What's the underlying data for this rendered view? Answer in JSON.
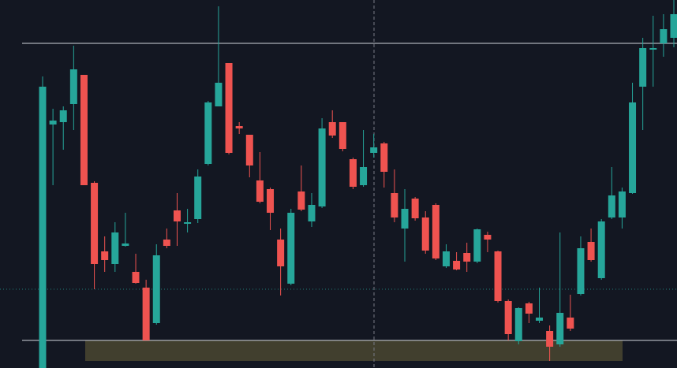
{
  "chart_data": {
    "type": "candlestick",
    "up_color": "#26a69a",
    "down_color": "#ef5350",
    "ylim": [
      0,
      467
    ],
    "open": [
      0,
      309,
      312,
      335,
      372,
      235,
      148,
      132,
      155,
      122,
      102,
      57,
      163,
      200,
      184,
      189,
      259,
      332,
      387,
      307,
      296,
      238,
      227,
      163,
      107,
      224,
      186,
      205,
      312,
      312,
      265,
      232,
      273,
      285,
      222,
      177,
      215,
      191,
      207,
      129,
      136,
      146,
      135,
      169,
      148,
      85,
      34,
      82,
      60,
      47,
      30,
      64,
      94,
      160,
      114,
      191,
      191,
      222,
      357,
      405,
      412,
      419
    ],
    "high": [
      370,
      329,
      332,
      409,
      372,
      237,
      167,
      185,
      197,
      145,
      112,
      157,
      177,
      222,
      202,
      252,
      339,
      459,
      387,
      312,
      296,
      274,
      229,
      177,
      202,
      257,
      222,
      317,
      327,
      312,
      267,
      302,
      297,
      287,
      252,
      227,
      217,
      199,
      209,
      157,
      147,
      159,
      177,
      173,
      149,
      87,
      77,
      84,
      102,
      54,
      172,
      93,
      167,
      177,
      189,
      255,
      229,
      362,
      419,
      447,
      449,
      467
    ],
    "low": [
      0,
      232,
      277,
      302,
      232,
      100,
      122,
      122,
      154,
      107,
      35,
      55,
      152,
      155,
      172,
      184,
      257,
      332,
      271,
      297,
      242,
      209,
      175,
      92,
      105,
      199,
      179,
      203,
      292,
      275,
      227,
      230,
      267,
      229,
      185,
      135,
      187,
      145,
      137,
      127,
      124,
      122,
      133,
      147,
      83,
      35,
      30,
      57,
      57,
      9,
      27,
      47,
      92,
      135,
      112,
      189,
      177,
      221,
      302,
      357,
      395,
      407
    ],
    "close": [
      357,
      314,
      327,
      379,
      232,
      132,
      137,
      172,
      158,
      108,
      35,
      143,
      155,
      186,
      185,
      243,
      337,
      362,
      273,
      304,
      257,
      211,
      197,
      129,
      197,
      201,
      207,
      304,
      295,
      278,
      230,
      255,
      280,
      249,
      191,
      202,
      190,
      149,
      139,
      148,
      125,
      135,
      176,
      163,
      85,
      43,
      76,
      69,
      64,
      27,
      70,
      50,
      152,
      137,
      186,
      219,
      224,
      337,
      406,
      406,
      430,
      449
    ]
  }
}
